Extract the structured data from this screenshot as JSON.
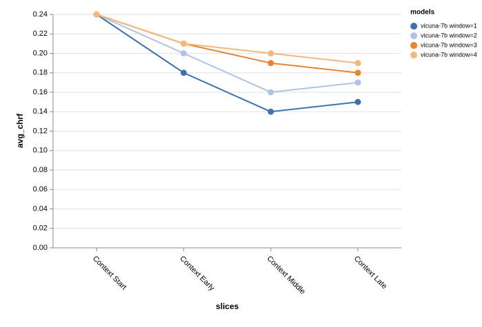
{
  "chart_data": {
    "type": "line",
    "x_label": "slices",
    "y_label": "avg_chrf",
    "categories": [
      "Context Start",
      "Context Early",
      "Context Middle",
      "Context Late"
    ],
    "series": [
      {
        "name": "vicuna-7b window=1",
        "color": "#3d72af",
        "values": [
          0.24,
          0.18,
          0.14,
          0.15
        ]
      },
      {
        "name": "vicuna-7b window=2",
        "color": "#aec3e6",
        "values": [
          0.24,
          0.2,
          0.16,
          0.17
        ]
      },
      {
        "name": "vicuna-7b window=3",
        "color": "#e8832f",
        "values": [
          0.24,
          0.21,
          0.19,
          0.18
        ]
      },
      {
        "name": "vicuna-7b window=4",
        "color": "#f4b97a",
        "values": [
          0.24,
          0.21,
          0.2,
          0.19
        ]
      }
    ],
    "legend_title": "models",
    "legend": "right",
    "ylim": [
      0,
      0.24
    ],
    "yticks": [
      {
        "value": 0,
        "label": "0.00"
      },
      {
        "value": 0.02,
        "label": "0.02"
      },
      {
        "value": 0.04,
        "label": "0.04"
      },
      {
        "value": 0.06,
        "label": "0.06"
      },
      {
        "value": 0.08,
        "label": "0.08"
      },
      {
        "value": 0.1,
        "label": "0.10"
      },
      {
        "value": 0.12,
        "label": "0.12"
      },
      {
        "value": 0.14,
        "label": "0.14"
      },
      {
        "value": 0.16,
        "label": "0.16"
      },
      {
        "value": 0.18,
        "label": "0.18"
      },
      {
        "value": 0.2,
        "label": "0.20"
      },
      {
        "value": 0.22,
        "label": "0.22"
      },
      {
        "value": 0.24,
        "label": "0.24"
      }
    ],
    "grid": true
  }
}
